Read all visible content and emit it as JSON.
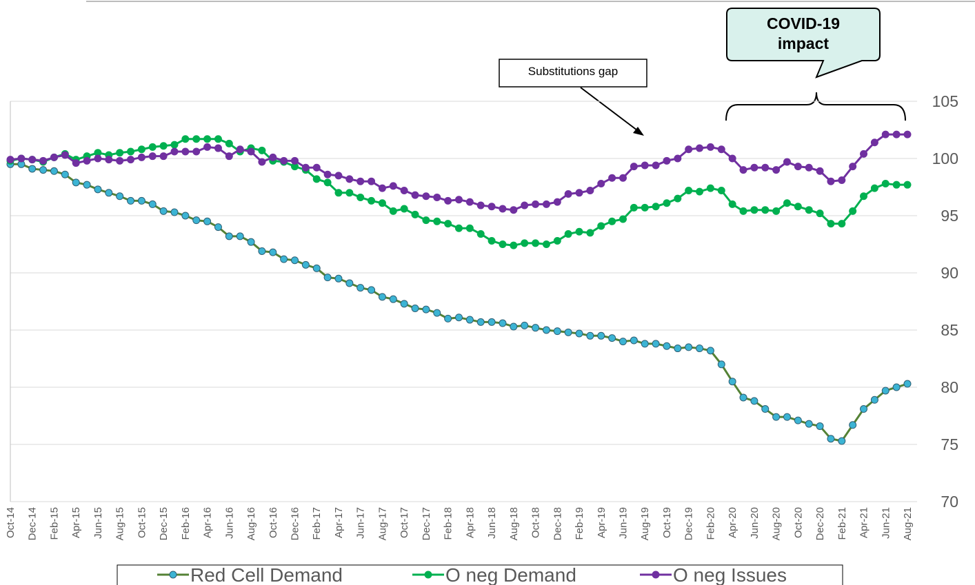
{
  "chart_data": {
    "type": "line",
    "categories": [
      "Oct-14",
      null,
      "Dec-14",
      null,
      "Feb-15",
      null,
      "Apr-15",
      null,
      "Jun-15",
      null,
      "Aug-15",
      null,
      "Oct-15",
      null,
      "Dec-15",
      null,
      "Feb-16",
      null,
      "Apr-16",
      null,
      "Jun-16",
      null,
      "Aug-16",
      null,
      "Oct-16",
      null,
      "Dec-16",
      null,
      "Feb-17",
      null,
      "Apr-17",
      null,
      "Jun-17",
      null,
      "Aug-17",
      null,
      "Oct-17",
      null,
      "Dec-17",
      null,
      "Feb-18",
      null,
      "Apr-18",
      null,
      "Jun-18",
      null,
      "Aug-18",
      null,
      "Oct-18",
      null,
      "Dec-18",
      null,
      "Feb-19",
      null,
      "Apr-19",
      null,
      "Jun-19",
      null,
      "Aug-19",
      null,
      "Oct-19",
      null,
      "Dec-19",
      null,
      "Feb-20",
      null,
      "Apr-20",
      null,
      "Jun-20",
      null,
      "Aug-20",
      null,
      "Oct-20",
      null,
      "Dec-20",
      null,
      "Feb-21",
      null,
      "Apr-21",
      null,
      "Jun-21",
      null,
      "Aug-21"
    ],
    "series": [
      {
        "name": "Red Cell Demand",
        "color": "#548235",
        "marker_color": "#3cb4d4",
        "values": [
          99.5,
          99.5,
          99.1,
          99.0,
          98.9,
          98.6,
          97.9,
          97.7,
          97.3,
          97.0,
          96.7,
          96.3,
          96.3,
          96.0,
          95.4,
          95.3,
          95.0,
          94.6,
          94.5,
          94.0,
          93.2,
          93.2,
          92.7,
          91.9,
          91.8,
          91.2,
          91.1,
          90.7,
          90.4,
          89.6,
          89.5,
          89.1,
          88.7,
          88.5,
          87.9,
          87.7,
          87.3,
          86.9,
          86.8,
          86.5,
          86.0,
          86.1,
          85.9,
          85.7,
          85.7,
          85.6,
          85.3,
          85.4,
          85.2,
          85.0,
          84.9,
          84.8,
          84.7,
          84.5,
          84.5,
          84.3,
          84.0,
          84.1,
          83.8,
          83.8,
          83.6,
          83.4,
          83.5,
          83.4,
          83.2,
          82.0,
          80.5,
          79.1,
          78.8,
          78.1,
          77.4,
          77.4,
          77.1,
          76.8,
          76.6,
          75.5,
          75.3,
          76.7,
          78.1,
          78.9,
          79.7,
          80.0,
          80.3
        ]
      },
      {
        "name": "O neg Demand",
        "color": "#00b050",
        "marker_color": "#00b050",
        "values": [
          99.8,
          100.0,
          99.9,
          99.7,
          100.1,
          100.4,
          99.9,
          100.2,
          100.5,
          100.3,
          100.5,
          100.6,
          100.8,
          101.0,
          101.1,
          101.2,
          101.7,
          101.7,
          101.7,
          101.7,
          101.3,
          100.6,
          100.9,
          100.7,
          99.8,
          99.7,
          99.3,
          99.0,
          98.2,
          97.9,
          97.0,
          97.0,
          96.6,
          96.3,
          96.1,
          95.4,
          95.6,
          95.1,
          94.6,
          94.5,
          94.3,
          93.9,
          93.9,
          93.4,
          92.8,
          92.5,
          92.4,
          92.6,
          92.6,
          92.5,
          92.8,
          93.4,
          93.6,
          93.5,
          94.1,
          94.5,
          94.7,
          95.7,
          95.7,
          95.8,
          96.1,
          96.5,
          97.2,
          97.1,
          97.4,
          97.2,
          96.0,
          95.4,
          95.5,
          95.5,
          95.4,
          96.1,
          95.8,
          95.5,
          95.2,
          94.3,
          94.3,
          95.4,
          96.7,
          97.4,
          97.8,
          97.7,
          97.7
        ]
      },
      {
        "name": "O neg Issues",
        "color": "#7030a0",
        "marker_color": "#7030a0",
        "values": [
          99.9,
          100.0,
          99.9,
          99.8,
          100.1,
          100.3,
          99.6,
          99.8,
          100.0,
          99.9,
          99.8,
          99.9,
          100.1,
          100.2,
          100.2,
          100.6,
          100.6,
          100.6,
          101.0,
          100.9,
          100.2,
          100.8,
          100.6,
          99.7,
          100.1,
          99.8,
          99.8,
          99.2,
          99.2,
          98.6,
          98.5,
          98.2,
          98.0,
          98.0,
          97.4,
          97.6,
          97.2,
          96.8,
          96.7,
          96.6,
          96.3,
          96.4,
          96.2,
          95.9,
          95.8,
          95.6,
          95.5,
          95.9,
          96.0,
          96.0,
          96.2,
          96.9,
          97.0,
          97.2,
          97.8,
          98.3,
          98.3,
          99.3,
          99.4,
          99.4,
          99.8,
          100.0,
          100.8,
          100.9,
          101.0,
          100.8,
          100.0,
          99.0,
          99.2,
          99.2,
          99.0,
          99.7,
          99.3,
          99.2,
          98.9,
          98.0,
          98.1,
          99.3,
          100.4,
          101.4,
          102.1,
          102.1,
          102.1
        ]
      }
    ],
    "ylim": [
      70,
      105
    ],
    "yticks": [
      70,
      75,
      80,
      85,
      90,
      95,
      100,
      105
    ],
    "grid": true,
    "y_axis_side": "right",
    "legend": "bottom",
    "annotations": [
      "Substitutions gap",
      "COVID-19 impact"
    ]
  }
}
